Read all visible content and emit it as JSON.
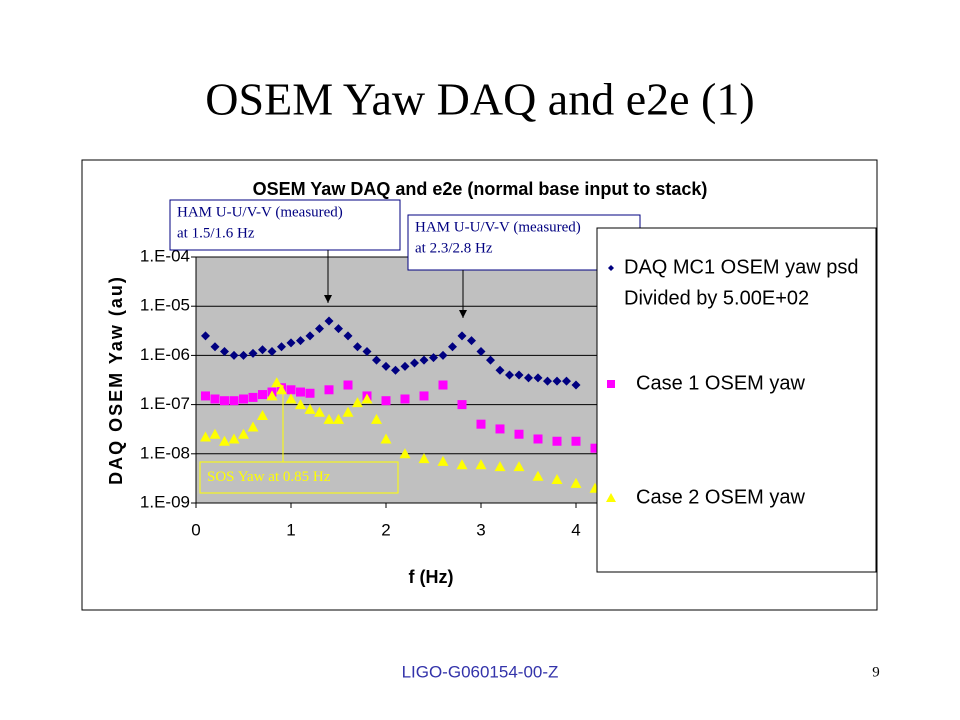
{
  "slide_title": "OSEM Yaw DAQ and e2e (1)",
  "footer": "LIGO-G060154-00-Z",
  "page_number": "9",
  "chart_data": {
    "type": "scatter",
    "title": "OSEM Yaw DAQ and e2e (normal base input to stack)",
    "x_label": "f (Hz)",
    "y_label": "DAQ OSEM Yaw (au)",
    "xlim": [
      0,
      5
    ],
    "xticks": [
      0,
      1,
      2,
      3,
      4
    ],
    "ylim": [
      1e-09,
      0.0001
    ],
    "log_y": true,
    "yticks": [
      {
        "value": 0.0001,
        "label": "1.E-04"
      },
      {
        "value": 1e-05,
        "label": "1.E-05"
      },
      {
        "value": 1e-06,
        "label": "1.E-06"
      },
      {
        "value": 1e-07,
        "label": "1.E-07"
      },
      {
        "value": 1e-08,
        "label": "1.E-08"
      },
      {
        "value": 1e-09,
        "label": "1.E-09"
      }
    ],
    "grid": true,
    "legend_note": "Divided by 5.00E+02",
    "series": [
      {
        "name": "DAQ MC1 OSEM yaw psd",
        "color": "#000080",
        "marker": "diamond",
        "x": [
          0.1,
          0.2,
          0.3,
          0.4,
          0.5,
          0.6,
          0.7,
          0.8,
          0.9,
          1.0,
          1.1,
          1.2,
          1.3,
          1.4,
          1.5,
          1.6,
          1.7,
          1.8,
          1.9,
          2.0,
          2.1,
          2.2,
          2.3,
          2.4,
          2.5,
          2.6,
          2.7,
          2.8,
          2.9,
          3.0,
          3.1,
          3.2,
          3.3,
          3.4,
          3.5,
          3.6,
          3.7,
          3.8,
          3.9,
          4.0
        ],
        "values": [
          2.5e-06,
          1.5e-06,
          1.2e-06,
          1e-06,
          1e-06,
          1.1e-06,
          1.3e-06,
          1.2e-06,
          1.5e-06,
          1.8e-06,
          2e-06,
          2.5e-06,
          3.5e-06,
          5e-06,
          3.5e-06,
          2.5e-06,
          1.5e-06,
          1.2e-06,
          8e-07,
          6e-07,
          5e-07,
          6e-07,
          7e-07,
          8e-07,
          9e-07,
          1e-06,
          1.5e-06,
          2.5e-06,
          2e-06,
          1.2e-06,
          8e-07,
          5e-07,
          4e-07,
          4e-07,
          3.5e-07,
          3.5e-07,
          3e-07,
          3e-07,
          3e-07,
          2.5e-07
        ]
      },
      {
        "name": "Case 1 OSEM yaw",
        "color": "#ff00ff",
        "marker": "square",
        "x": [
          0.1,
          0.2,
          0.3,
          0.4,
          0.5,
          0.6,
          0.7,
          0.8,
          0.9,
          1.0,
          1.1,
          1.2,
          1.4,
          1.6,
          1.8,
          2.0,
          2.2,
          2.4,
          2.6,
          2.8,
          3.0,
          3.2,
          3.4,
          3.6,
          3.8,
          4.0,
          4.2
        ],
        "values": [
          1.5e-07,
          1.3e-07,
          1.2e-07,
          1.2e-07,
          1.3e-07,
          1.4e-07,
          1.6e-07,
          1.8e-07,
          2.2e-07,
          2e-07,
          1.8e-07,
          1.7e-07,
          2e-07,
          2.5e-07,
          1.5e-07,
          1.2e-07,
          1.3e-07,
          1.5e-07,
          2.5e-07,
          1e-07,
          4e-08,
          3.2e-08,
          2.5e-08,
          2e-08,
          1.8e-08,
          1.8e-08,
          1.3e-08
        ]
      },
      {
        "name": "Case 2 OSEM yaw",
        "color": "#ffff00",
        "marker": "triangle",
        "x": [
          0.1,
          0.2,
          0.3,
          0.4,
          0.5,
          0.6,
          0.7,
          0.8,
          0.85,
          0.9,
          1.0,
          1.1,
          1.2,
          1.3,
          1.4,
          1.5,
          1.6,
          1.7,
          1.8,
          1.9,
          2.0,
          2.2,
          2.4,
          2.6,
          2.8,
          3.0,
          3.2,
          3.4,
          3.6,
          3.8,
          4.0,
          4.2
        ],
        "values": [
          2.2e-08,
          2.5e-08,
          1.8e-08,
          2e-08,
          2.5e-08,
          3.5e-08,
          6e-08,
          1.5e-07,
          2.8e-07,
          2e-07,
          1.3e-07,
          1e-07,
          8e-08,
          7e-08,
          5e-08,
          5e-08,
          7e-08,
          1.1e-07,
          1.3e-07,
          5e-08,
          2e-08,
          1e-08,
          8e-09,
          7e-09,
          6e-09,
          6e-09,
          5.5e-09,
          5.5e-09,
          3.5e-09,
          3e-09,
          2.5e-09,
          2e-09
        ]
      }
    ],
    "annotations": [
      {
        "lines": [
          "HAM U-U/V-V (measured)",
          "at 1.5/1.6 Hz"
        ]
      },
      {
        "lines": [
          "HAM U-U/V-V (measured)",
          "at 2.3/2.8 Hz"
        ]
      },
      {
        "lines": [
          "SOS Yaw at 0.85 Hz"
        ]
      }
    ]
  }
}
